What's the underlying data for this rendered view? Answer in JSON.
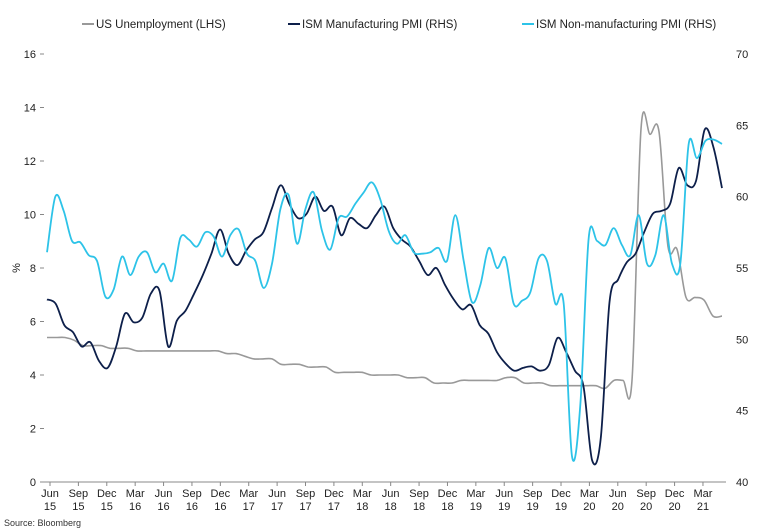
{
  "chart_data": {
    "type": "line",
    "title": "",
    "source": "Source: Bloomberg",
    "ylabel_left": "%",
    "ylim_left": [
      0,
      16
    ],
    "yticks_left": [
      "0",
      "2",
      "4",
      "6",
      "8",
      "10",
      "12",
      "14",
      "16"
    ],
    "ylim_right": [
      40,
      70
    ],
    "yticks_right": [
      "40",
      "45",
      "50",
      "55",
      "60",
      "65",
      "70"
    ],
    "x_start": "2015-06",
    "x_end": "2021-05",
    "x_ticks": [
      {
        "m": "Jun",
        "y": "15"
      },
      {
        "m": "Sep",
        "y": "15"
      },
      {
        "m": "Dec",
        "y": "15"
      },
      {
        "m": "Mar",
        "y": "16"
      },
      {
        "m": "Jun",
        "y": "16"
      },
      {
        "m": "Sep",
        "y": "16"
      },
      {
        "m": "Dec",
        "y": "16"
      },
      {
        "m": "Mar",
        "y": "17"
      },
      {
        "m": "Jun",
        "y": "17"
      },
      {
        "m": "Sep",
        "y": "17"
      },
      {
        "m": "Dec",
        "y": "17"
      },
      {
        "m": "Mar",
        "y": "18"
      },
      {
        "m": "Jun",
        "y": "18"
      },
      {
        "m": "Sep",
        "y": "18"
      },
      {
        "m": "Dec",
        "y": "18"
      },
      {
        "m": "Mar",
        "y": "19"
      },
      {
        "m": "Jun",
        "y": "19"
      },
      {
        "m": "Sep",
        "y": "19"
      },
      {
        "m": "Dec",
        "y": "19"
      },
      {
        "m": "Mar",
        "y": "20"
      },
      {
        "m": "Jun",
        "y": "20"
      },
      {
        "m": "Sep",
        "y": "20"
      },
      {
        "m": "Dec",
        "y": "20"
      },
      {
        "m": "Mar",
        "y": "21"
      }
    ],
    "series": [
      {
        "name": "US Unemployment (LHS)",
        "axis": "left",
        "color": "#999999",
        "values": [
          5.4,
          5.4,
          5.4,
          5.3,
          5.1,
          5.1,
          5.1,
          5.0,
          5.0,
          5.0,
          4.9,
          4.9,
          4.9,
          4.9,
          4.9,
          4.9,
          4.9,
          4.9,
          4.9,
          4.9,
          4.8,
          4.8,
          4.7,
          4.6,
          4.6,
          4.6,
          4.4,
          4.4,
          4.4,
          4.3,
          4.3,
          4.3,
          4.1,
          4.1,
          4.1,
          4.1,
          4.0,
          4.0,
          4.0,
          4.0,
          3.9,
          3.9,
          3.9,
          3.7,
          3.7,
          3.7,
          3.8,
          3.8,
          3.8,
          3.8,
          3.8,
          3.9,
          3.9,
          3.7,
          3.7,
          3.7,
          3.6,
          3.6,
          3.6,
          3.6,
          3.6,
          3.6,
          3.5,
          3.8,
          3.8,
          3.8,
          13.2,
          13.0,
          13.1,
          8.8,
          8.7,
          6.9,
          6.9,
          6.8,
          6.2,
          6.2
        ]
      },
      {
        "name": "ISM Manufacturing PMI (RHS)",
        "axis": "right",
        "color": "#0d1f4a",
        "values": [
          52.8,
          52.5,
          51.0,
          50.5,
          49.5,
          49.8,
          48.5,
          48.0,
          49.5,
          51.8,
          51.2,
          51.5,
          53.2,
          53.4,
          49.5,
          51.3,
          52.0,
          53.2,
          54.5,
          56.0,
          57.7,
          56.0,
          55.2,
          56.2,
          57.0,
          57.5,
          59.2,
          60.8,
          59.5,
          58.5,
          58.8,
          60.0,
          59.0,
          59.3,
          57.3,
          58.5,
          58.1,
          57.8,
          58.7,
          59.3,
          57.8,
          57.0,
          56.5,
          55.5,
          54.5,
          55.0,
          53.8,
          52.8,
          52.1,
          52.4,
          51.0,
          50.4,
          49.1,
          48.3,
          47.8,
          48.0,
          48.1,
          47.8,
          48.2,
          50.1,
          49.1,
          47.8,
          46.7,
          41.5,
          43.1,
          52.6,
          54.2,
          55.4,
          56.0,
          57.5,
          58.8,
          59.0,
          59.5,
          62.0,
          60.8,
          61.1,
          64.7,
          63.5,
          60.6
        ]
      },
      {
        "name": "ISM Non-manufacturing PMI (RHS)",
        "axis": "right",
        "color": "#2dc3e8",
        "values": [
          56.1,
          60.0,
          59.0,
          56.9,
          56.8,
          55.9,
          55.5,
          53.0,
          53.5,
          55.8,
          54.5,
          55.8,
          56.1,
          54.7,
          55.3,
          54.1,
          57.1,
          57.0,
          56.5,
          57.5,
          57.2,
          55.8,
          57.3,
          57.7,
          56.0,
          55.5,
          53.6,
          55.3,
          59.1,
          60.1,
          56.7,
          59.1,
          60.3,
          57.6,
          56.3,
          58.5,
          58.6,
          59.5,
          60.3,
          61.0,
          59.8,
          57.6,
          56.7,
          57.3,
          56.1,
          56.0,
          56.1,
          56.4,
          55.5,
          58.7,
          55.5,
          52.6,
          53.8,
          56.4,
          55.0,
          55.7,
          52.5,
          52.7,
          53.3,
          55.7,
          55.5,
          52.5,
          52.5,
          41.8,
          45.4,
          57.1,
          56.9,
          56.6,
          57.8,
          56.6,
          55.9,
          58.7,
          55.3,
          55.9,
          58.7,
          55.3,
          55.3,
          63.7,
          62.7,
          63.9,
          64.0,
          63.7
        ]
      }
    ]
  }
}
